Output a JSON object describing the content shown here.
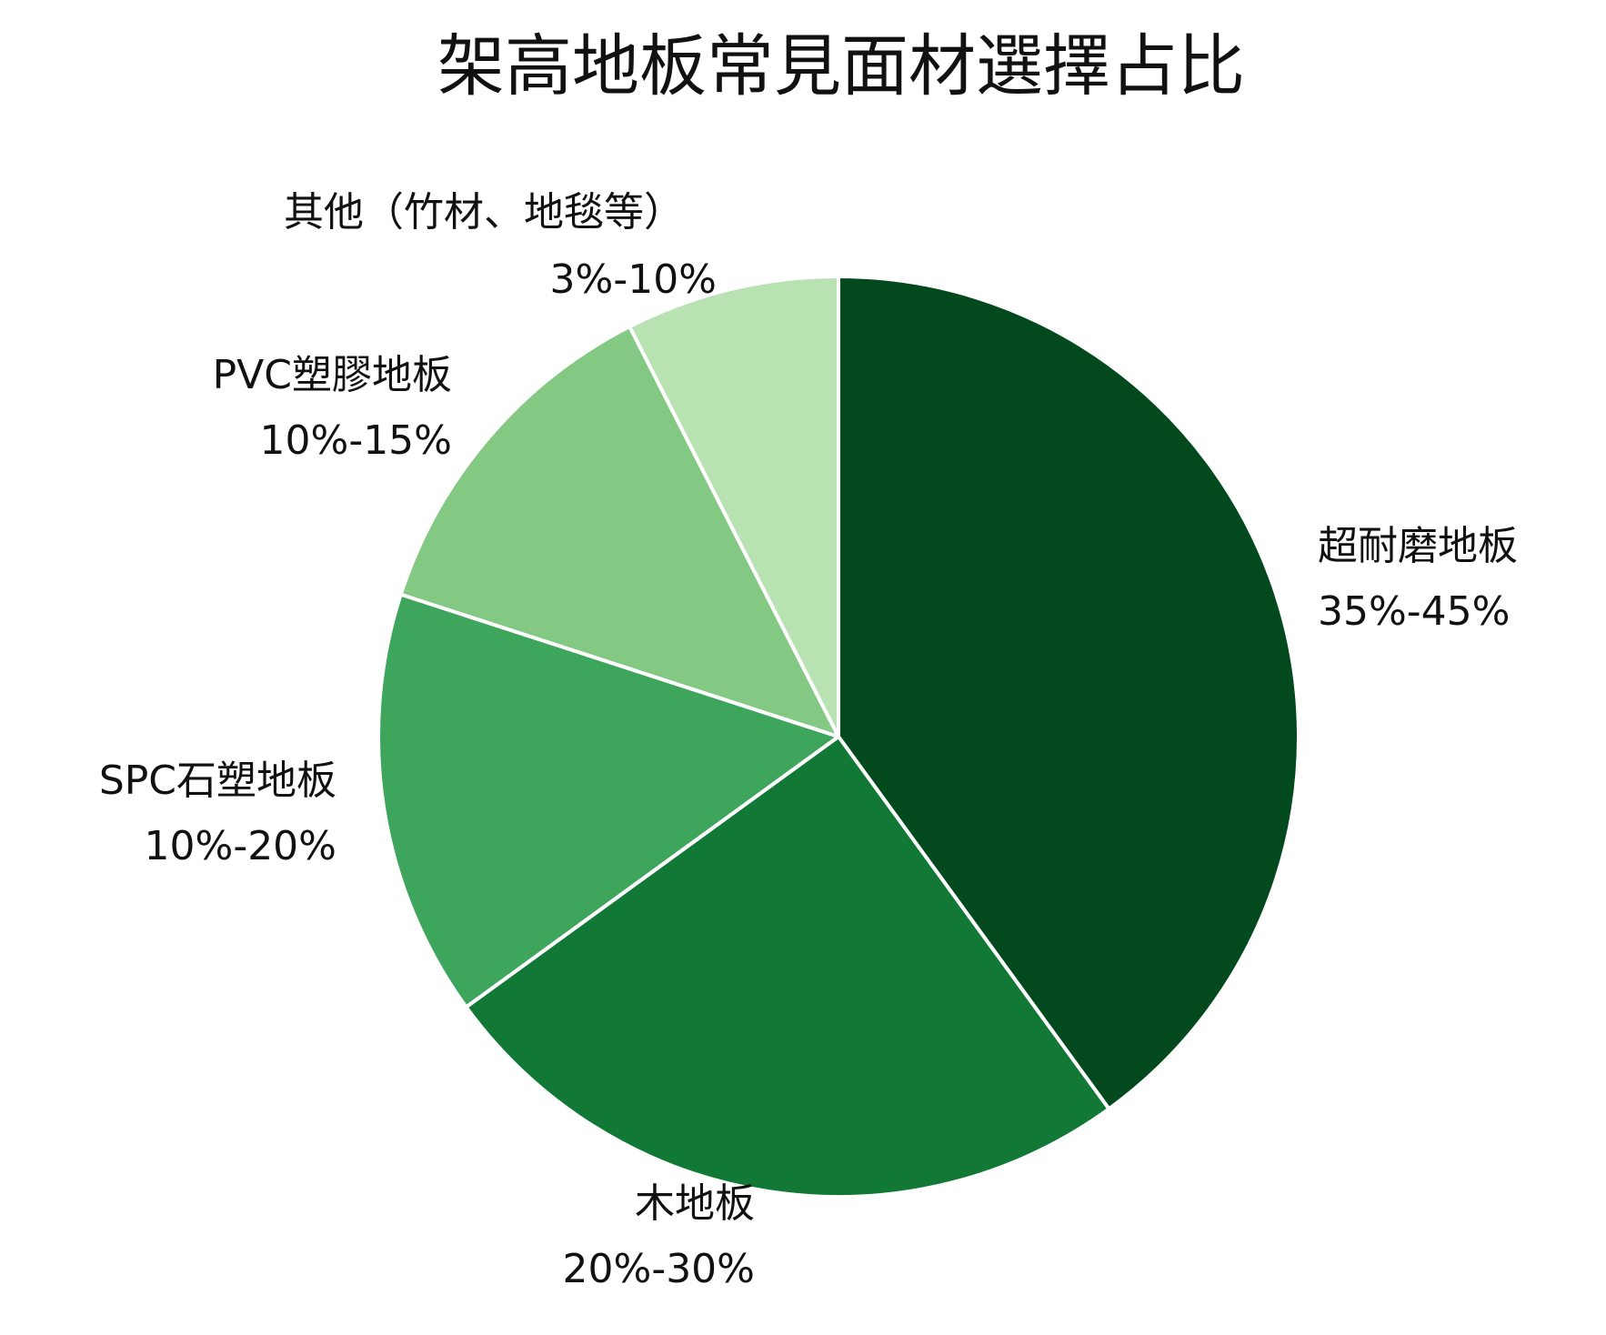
{
  "chart_data": {
    "type": "pie",
    "title": "架高地板常見面材選擇占比",
    "start_angle_deg": 90,
    "direction": "clockwise",
    "slice_border_color": "#ffffff",
    "slices": [
      {
        "name": "超耐磨地板",
        "range": "35%-45%",
        "value": 40,
        "color": "#024a1e"
      },
      {
        "name": "木地板",
        "range": "20%-30%",
        "value": 25,
        "color": "#117836"
      },
      {
        "name": "SPC石塑地板",
        "range": "10%-20%",
        "value": 15,
        "color": "#3ea55d"
      },
      {
        "name": "PVC塑膠地板",
        "range": "10%-15%",
        "value": 12.5,
        "color": "#83c883"
      },
      {
        "name": "其他（竹材、地毯等）",
        "range": "3%-10%",
        "value": 7.5,
        "color": "#b8e2b2"
      }
    ]
  }
}
